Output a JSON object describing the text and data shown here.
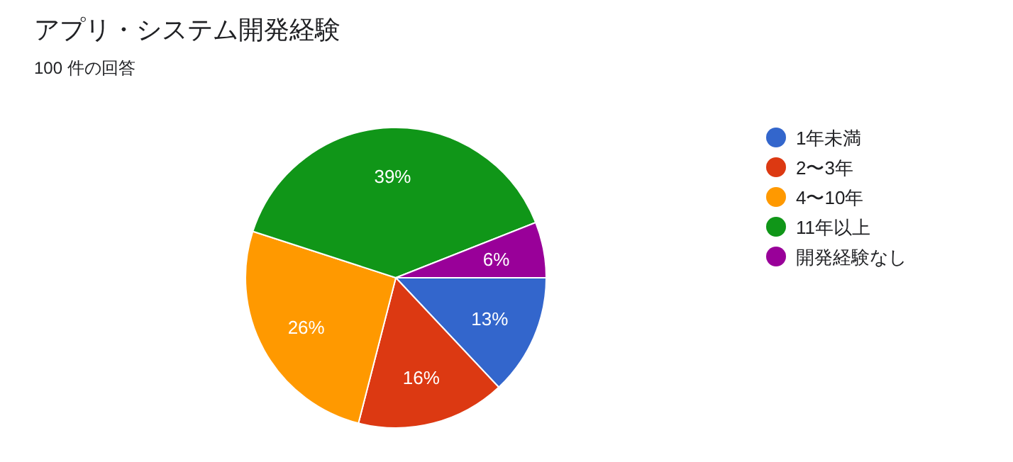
{
  "chart_data": {
    "type": "pie",
    "title": "アプリ・システム開発経験",
    "subtitle": "100 件の回答",
    "categories": [
      "1年未満",
      "2〜3年",
      "4〜10年",
      "11年以上",
      "開発経験なし"
    ],
    "values": [
      13,
      16,
      26,
      39,
      6
    ],
    "colors": [
      "#3366cc",
      "#dc3912",
      "#ff9900",
      "#109618",
      "#990099"
    ],
    "value_labels": [
      "13%",
      "16%",
      "26%",
      "39%",
      "6%"
    ],
    "legend": "right"
  }
}
